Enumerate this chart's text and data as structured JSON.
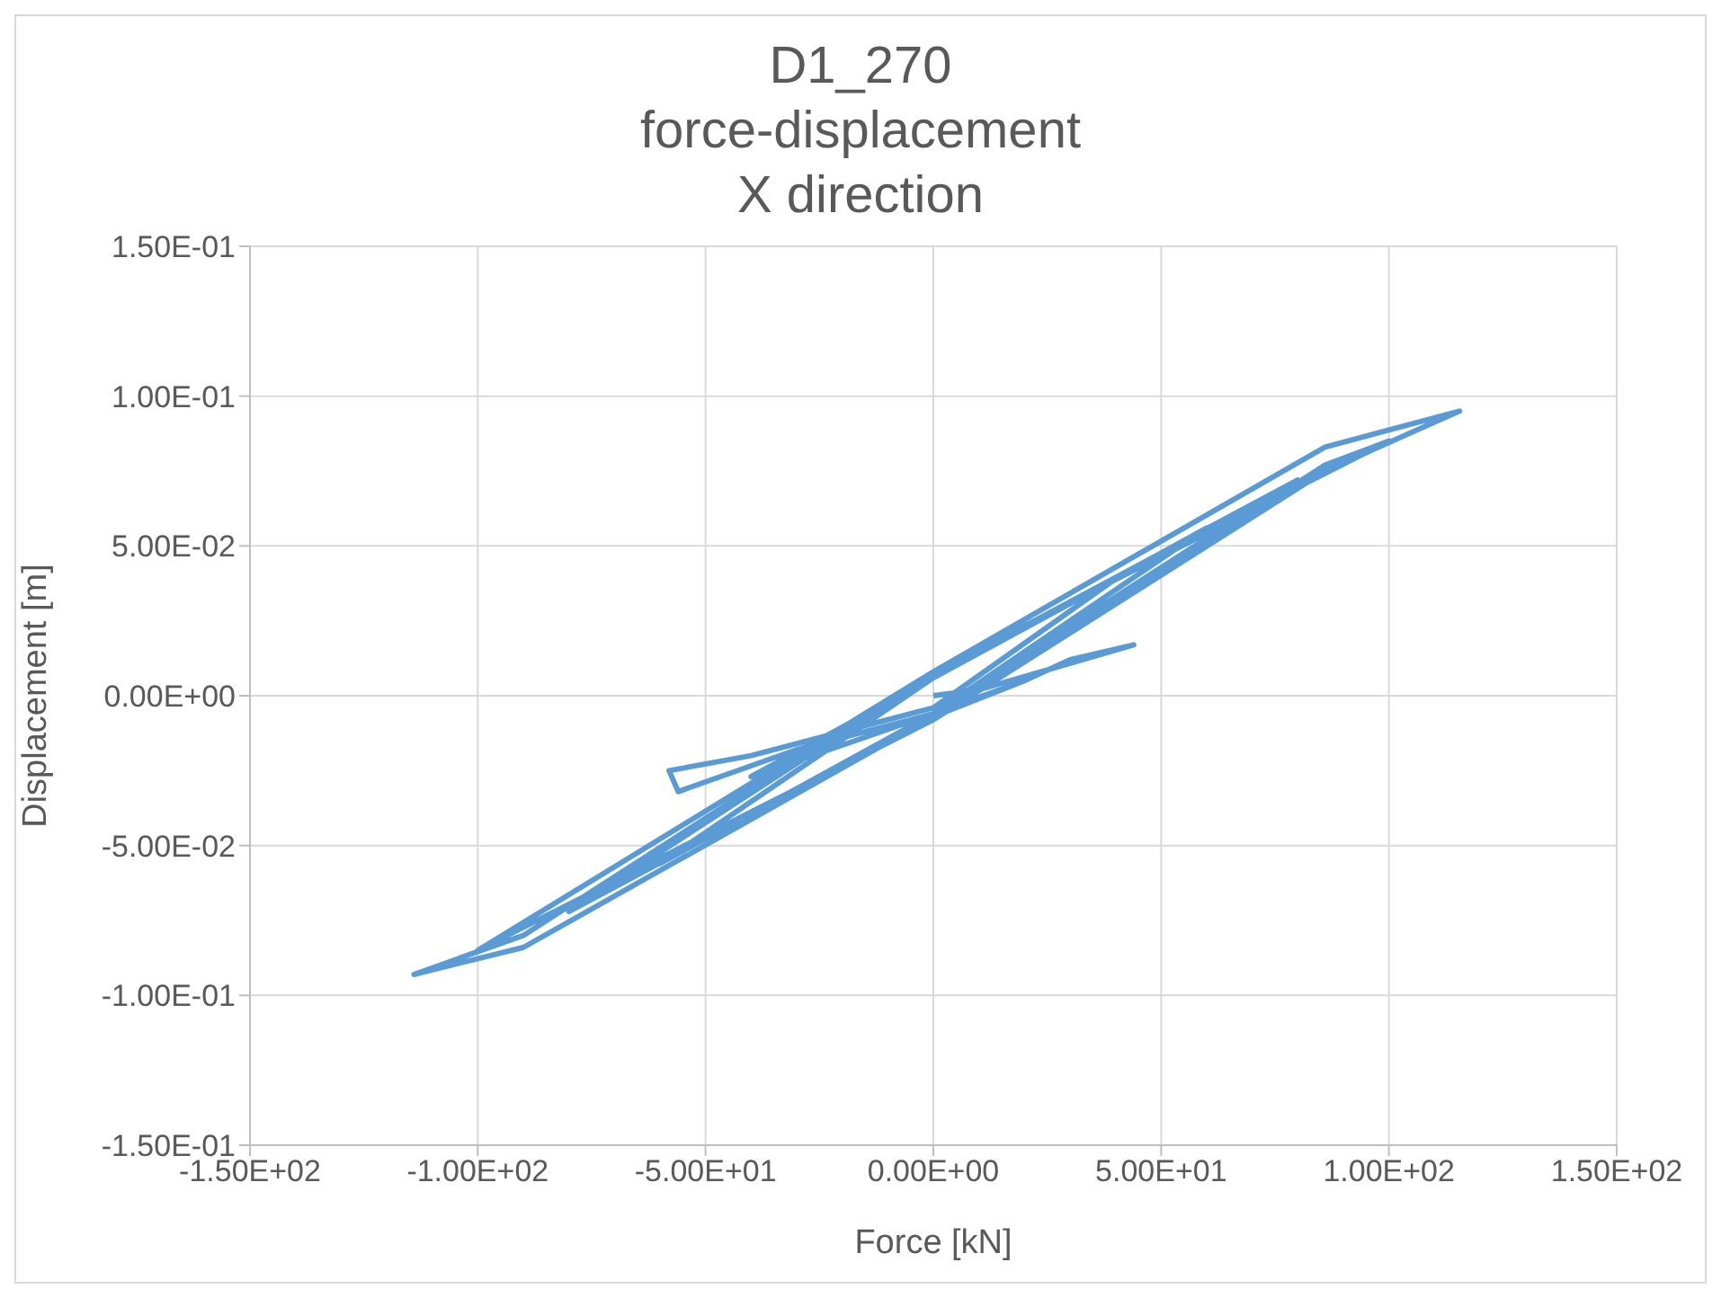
{
  "chart_data": {
    "type": "line",
    "title": "D1_270\nforce-displacement\nX direction",
    "xlabel": "Force  [kN]",
    "ylabel": "Displacement  [m]",
    "x": [
      0,
      10,
      44,
      30,
      20,
      0,
      -30,
      -56,
      -58,
      -40,
      -20,
      0,
      40,
      0,
      -40,
      0,
      60,
      0,
      -60,
      0,
      80,
      0,
      -80,
      0,
      86,
      100,
      0,
      -100,
      0,
      86,
      115.5,
      86,
      0,
      -90,
      -114,
      -90,
      0,
      20
    ],
    "series": [
      {
        "color": "#5b9bd5",
        "values": [
          0,
          0.002,
          0.017,
          0.012,
          0.005,
          -0.006,
          -0.018,
          -0.032,
          -0.025,
          -0.02,
          -0.012,
          -0.004,
          0.039,
          0.006,
          -0.027,
          -0.006,
          0.056,
          0.006,
          -0.056,
          -0.006,
          0.072,
          0.007,
          -0.072,
          -0.007,
          0.077,
          0.085,
          0.008,
          -0.085,
          -0.008,
          0.075,
          0.095,
          0.083,
          0.008,
          -0.08,
          -0.093,
          -0.084,
          -0.007,
          0.005
        ]
      }
    ],
    "xlim": [
      -150,
      150
    ],
    "xticks": [
      {
        "value": -150,
        "label": "-1.50E+02"
      },
      {
        "value": -100,
        "label": "-1.00E+02"
      },
      {
        "value": -50,
        "label": "-5.00E+01"
      },
      {
        "value": 0,
        "label": "0.00E+00"
      },
      {
        "value": 50,
        "label": "5.00E+01"
      },
      {
        "value": 100,
        "label": "1.00E+02"
      },
      {
        "value": 150,
        "label": "1.50E+02"
      }
    ],
    "ylim": [
      -0.15,
      0.15
    ],
    "yticks": [
      {
        "value": -0.15,
        "label": "-1.50E-01"
      },
      {
        "value": -0.1,
        "label": "-1.00E-01"
      },
      {
        "value": -0.05,
        "label": "-5.00E-02"
      },
      {
        "value": 0,
        "label": "0.00E+00"
      },
      {
        "value": 0.05,
        "label": "5.00E-02"
      },
      {
        "value": 0.1,
        "label": "1.00E-01"
      },
      {
        "value": 0.15,
        "label": "1.50E-01"
      }
    ],
    "grid": true,
    "marker": "none",
    "line_style": "solid"
  }
}
